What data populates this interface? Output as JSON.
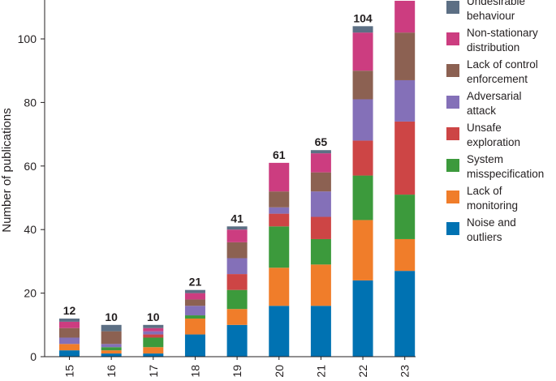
{
  "chart_data": {
    "type": "bar",
    "stacked": true,
    "ylabel": "Number of publications",
    "xlabel": "",
    "ylim": [
      0,
      112
    ],
    "yticks": [
      0,
      20,
      40,
      60,
      80,
      100
    ],
    "categories": [
      "15",
      "16",
      "17",
      "18",
      "19",
      "20",
      "21",
      "22",
      "23"
    ],
    "totals": [
      12,
      10,
      10,
      21,
      41,
      61,
      65,
      104,
      null
    ],
    "legend_position": "right",
    "series": [
      {
        "name": "Noise and outliers",
        "color": "#0072b2",
        "values": [
          2,
          1,
          1,
          7,
          10,
          16,
          16,
          24,
          27
        ]
      },
      {
        "name": "Lack of monitoring",
        "color": "#f07d2a",
        "values": [
          2,
          1,
          2,
          5,
          5,
          12,
          13,
          19,
          10
        ]
      },
      {
        "name": "System misspecification",
        "color": "#3c9a3c",
        "values": [
          0,
          1,
          3,
          1,
          6,
          13,
          8,
          14,
          14
        ]
      },
      {
        "name": "Unsafe exploration",
        "color": "#cd4545",
        "values": [
          0,
          0,
          1,
          0,
          5,
          4,
          7,
          11,
          23
        ]
      },
      {
        "name": "Adversarial attack",
        "color": "#8470b8",
        "values": [
          2,
          1,
          1,
          3,
          5,
          2,
          8,
          13,
          13
        ]
      },
      {
        "name": "Lack of control enforcement",
        "color": "#8c6152",
        "values": [
          3,
          4,
          0,
          2,
          5,
          5,
          6,
          9,
          15
        ]
      },
      {
        "name": "Non-stationary distribution",
        "color": "#cc3d80",
        "values": [
          2,
          0,
          1,
          2,
          4,
          9,
          6,
          12,
          10
        ]
      },
      {
        "name": "Undesirable behaviour",
        "color": "#5c6f84",
        "values": [
          1,
          2,
          1,
          1,
          1,
          0,
          1,
          2,
          0
        ]
      }
    ],
    "legend": [
      {
        "lines": [
          "Undesirable",
          "behaviour"
        ],
        "color": "#5c6f84"
      },
      {
        "lines": [
          "Non-stationary",
          "distribution"
        ],
        "color": "#cc3d80"
      },
      {
        "lines": [
          "Lack of control",
          "enforcement"
        ],
        "color": "#8c6152"
      },
      {
        "lines": [
          "Adversarial",
          "attack"
        ],
        "color": "#8470b8"
      },
      {
        "lines": [
          "Unsafe",
          "exploration"
        ],
        "color": "#cd4545"
      },
      {
        "lines": [
          "System",
          "misspecification"
        ],
        "color": "#3c9a3c"
      },
      {
        "lines": [
          "Lack of",
          "monitoring"
        ],
        "color": "#f07d2a"
      },
      {
        "lines": [
          "Noise and",
          "outliers"
        ],
        "color": "#0072b2"
      }
    ]
  }
}
